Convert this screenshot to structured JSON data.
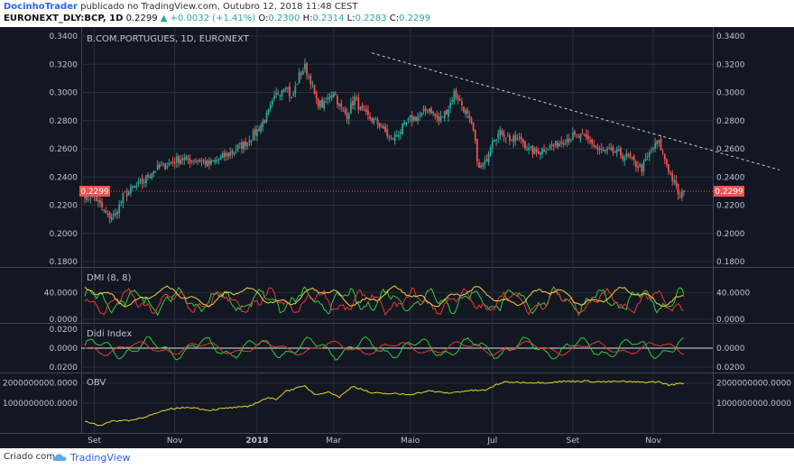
{
  "header": {
    "author": "DocinhoTrader",
    "published_text": "publicado no TradingView.com, Outubro 12, 2018 11:48 CEST",
    "symbol": "EURONEXT_DLY:BCP, 1D",
    "last": "0.2299",
    "change": "▲ +0.0032 (+1.41%)",
    "o_label": "O:",
    "o": "0.2300",
    "h_label": "H:",
    "h": "0.2314",
    "l_label": "L:",
    "l": "0.2283",
    "c_label": "C:",
    "c": "0.2299"
  },
  "footer": {
    "credit": "Criado com",
    "brand": "TradingView",
    "brand_icon": "tradingview-cloud-icon"
  },
  "colors": {
    "background": "#131722",
    "grid": "#2a2e39",
    "up": "#26a69a",
    "down": "#ef5350",
    "price_label": "#ef5350",
    "trendline": "#cccccc",
    "dmi_plus": "#2ecc40",
    "dmi_minus": "#e53935",
    "adx": "#f4d03f",
    "didi_fast": "#2ecc40",
    "didi_slow": "#e53935",
    "obv": "#e6d72a",
    "text": "#c0c4cc"
  },
  "chart_data": [
    {
      "type": "candlestick",
      "title": "B.COM.PORTUGUES, 1D, EURONEXT",
      "ylim": [
        0.18,
        0.34
      ],
      "y_ticks": [
        "0.1800",
        "0.2000",
        "0.2200",
        "0.2400",
        "0.2600",
        "0.2800",
        "0.3000",
        "0.3200",
        "0.3400"
      ],
      "x_ticks": [
        "Set",
        "Nov",
        "2018",
        "Mar",
        "Maio",
        "Jul",
        "Set",
        "Nov"
      ],
      "last_price_label": "0.2299",
      "last_price": 0.2299,
      "anchors": [
        [
          0,
          0.228
        ],
        [
          5,
          0.226
        ],
        [
          9,
          0.218
        ],
        [
          12,
          0.212
        ],
        [
          16,
          0.213
        ],
        [
          20,
          0.226
        ],
        [
          25,
          0.232
        ],
        [
          30,
          0.236
        ],
        [
          35,
          0.244
        ],
        [
          40,
          0.247
        ],
        [
          45,
          0.25
        ],
        [
          50,
          0.253
        ],
        [
          55,
          0.252
        ],
        [
          60,
          0.252
        ],
        [
          65,
          0.249
        ],
        [
          70,
          0.253
        ],
        [
          75,
          0.256
        ],
        [
          80,
          0.261
        ],
        [
          85,
          0.265
        ],
        [
          90,
          0.273
        ],
        [
          95,
          0.283
        ],
        [
          100,
          0.298
        ],
        [
          105,
          0.306
        ],
        [
          108,
          0.295
        ],
        [
          112,
          0.312
        ],
        [
          115,
          0.318
        ],
        [
          118,
          0.309
        ],
        [
          121,
          0.293
        ],
        [
          125,
          0.291
        ],
        [
          130,
          0.302
        ],
        [
          133,
          0.29
        ],
        [
          137,
          0.284
        ],
        [
          141,
          0.296
        ],
        [
          145,
          0.285
        ],
        [
          150,
          0.281
        ],
        [
          155,
          0.276
        ],
        [
          160,
          0.266
        ],
        [
          165,
          0.273
        ],
        [
          170,
          0.281
        ],
        [
          175,
          0.283
        ],
        [
          180,
          0.289
        ],
        [
          185,
          0.28
        ],
        [
          190,
          0.289
        ],
        [
          193,
          0.3
        ],
        [
          196,
          0.294
        ],
        [
          200,
          0.283
        ],
        [
          203,
          0.272
        ],
        [
          206,
          0.245
        ],
        [
          209,
          0.249
        ],
        [
          213,
          0.268
        ],
        [
          218,
          0.272
        ],
        [
          223,
          0.266
        ],
        [
          228,
          0.267
        ],
        [
          232,
          0.259
        ],
        [
          236,
          0.258
        ],
        [
          240,
          0.26
        ],
        [
          245,
          0.262
        ],
        [
          250,
          0.266
        ],
        [
          255,
          0.269
        ],
        [
          260,
          0.268
        ],
        [
          264,
          0.266
        ],
        [
          268,
          0.259
        ],
        [
          272,
          0.258
        ],
        [
          276,
          0.258
        ],
        [
          280,
          0.256
        ],
        [
          284,
          0.254
        ],
        [
          288,
          0.249
        ],
        [
          291,
          0.246
        ],
        [
          294,
          0.254
        ],
        [
          297,
          0.261
        ],
        [
          300,
          0.264
        ],
        [
          303,
          0.253
        ],
        [
          306,
          0.242
        ],
        [
          309,
          0.232
        ],
        [
          311,
          0.225
        ],
        [
          313,
          0.2299
        ]
      ],
      "trendline": {
        "start": [
          150,
          0.328
        ],
        "end": [
          363,
          0.245
        ]
      }
    },
    {
      "type": "line",
      "title": "DMI (8, 8)",
      "ylim": [
        0,
        70
      ],
      "y_ticks": [
        "40.0000",
        "0.0000"
      ],
      "series": [
        {
          "name": "",
          "role": "di_plus"
        },
        {
          "name": "",
          "role": "di_minus"
        },
        {
          "name": "",
          "role": "adx"
        }
      ]
    },
    {
      "type": "line",
      "title": "Didi Index",
      "ylim": [
        -0.02,
        0.02
      ],
      "y_ticks": [
        "0.0000",
        "0.0200",
        "0.0200"
      ],
      "series": [
        {
          "name": "",
          "role": "fast"
        },
        {
          "name": "",
          "role": "slow"
        }
      ]
    },
    {
      "type": "line",
      "title": "OBV",
      "ylim": [
        -300000000,
        2300000000
      ],
      "y_ticks": [
        "2000000000.0000",
        "1000000000.0000"
      ],
      "anchors": [
        [
          0,
          100
        ],
        [
          8,
          -100
        ],
        [
          15,
          120
        ],
        [
          25,
          160
        ],
        [
          35,
          420
        ],
        [
          45,
          720
        ],
        [
          55,
          800
        ],
        [
          65,
          650
        ],
        [
          75,
          760
        ],
        [
          85,
          820
        ],
        [
          95,
          1250
        ],
        [
          100,
          1200
        ],
        [
          105,
          1600
        ],
        [
          115,
          1850
        ],
        [
          120,
          1450
        ],
        [
          128,
          1550
        ],
        [
          133,
          1300
        ],
        [
          140,
          1850
        ],
        [
          150,
          1500
        ],
        [
          160,
          1470
        ],
        [
          170,
          1440
        ],
        [
          180,
          1600
        ],
        [
          190,
          1500
        ],
        [
          200,
          1620
        ],
        [
          210,
          1650
        ],
        [
          215,
          1930
        ],
        [
          220,
          2050
        ],
        [
          230,
          2030
        ],
        [
          240,
          2020
        ],
        [
          250,
          2080
        ],
        [
          260,
          2100
        ],
        [
          270,
          2060
        ],
        [
          280,
          2080
        ],
        [
          290,
          2040
        ],
        [
          300,
          2060
        ],
        [
          305,
          1900
        ],
        [
          313,
          2000
        ]
      ]
    }
  ]
}
